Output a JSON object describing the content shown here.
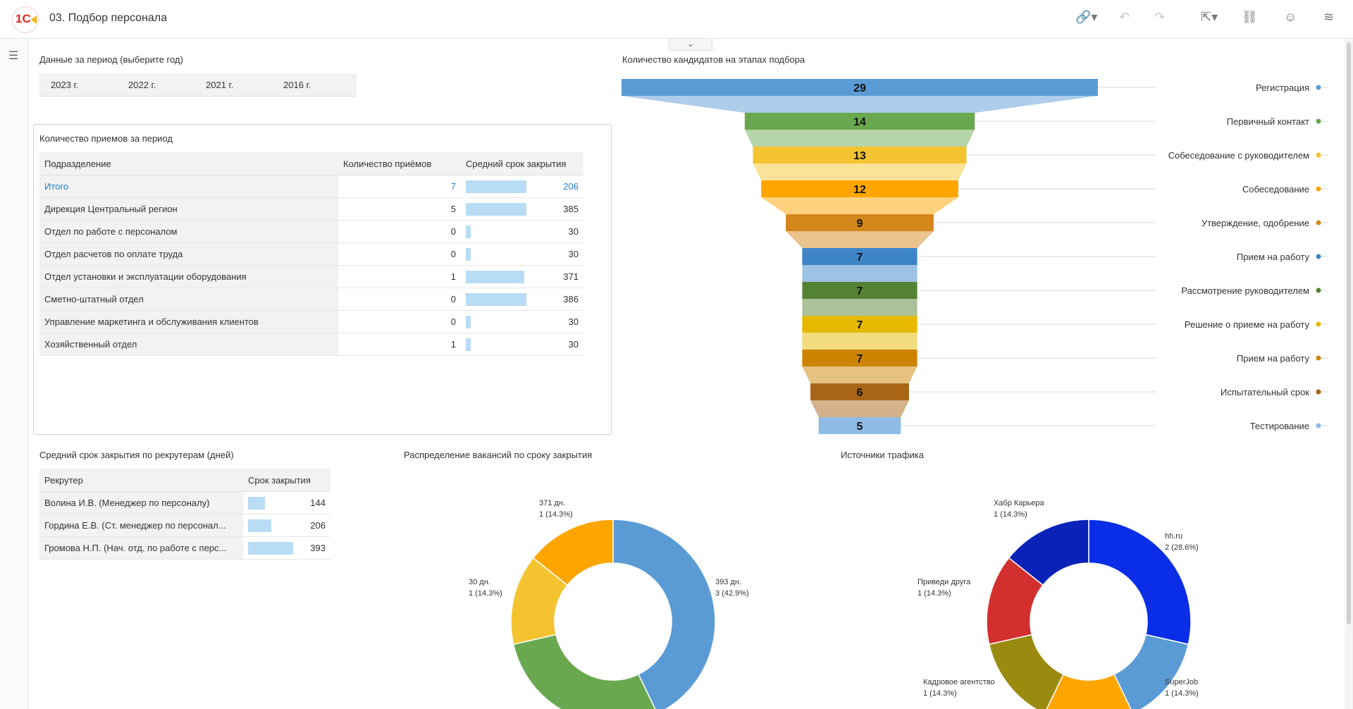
{
  "app": {
    "title": "03. Подбор персонала",
    "logo_text": "1С"
  },
  "period": {
    "label": "Данные за период (выберите год)",
    "years": [
      "2023 г.",
      "2022 г.",
      "2021 г.",
      "2016 г."
    ]
  },
  "hires": {
    "title": "Количество приемов за период",
    "headers": [
      "Подразделение",
      "Количество приёмов",
      "Средний срок закрытия"
    ],
    "rows": [
      {
        "dept": "Итого",
        "count": "7",
        "avg": "206",
        "bar": 1.0
      },
      {
        "dept": "Дирекция Центральный регион",
        "count": "5",
        "avg": "385",
        "bar": 1.0
      },
      {
        "dept": "Отдел по работе с персоналом",
        "count": "0",
        "avg": "30",
        "bar": 0.08
      },
      {
        "dept": "Отдел расчетов по оплате труда",
        "count": "0",
        "avg": "30",
        "bar": 0.08
      },
      {
        "dept": "Отдел установки и эксплуатации оборудования",
        "count": "1",
        "avg": "371",
        "bar": 0.96
      },
      {
        "dept": "Сметно-штатный отдел",
        "count": "0",
        "avg": "386",
        "bar": 1.0
      },
      {
        "dept": "Управление маркетинга и обслуживания клиентов",
        "count": "0",
        "avg": "30",
        "bar": 0.08
      },
      {
        "dept": "Хозяйственный отдел",
        "count": "1",
        "avg": "30",
        "bar": 0.08
      }
    ]
  },
  "recruiters": {
    "title": "Средний срок закрытия по рекрутерам (дней)",
    "headers": [
      "Рекрутер",
      "Срок закрытия"
    ],
    "rows": [
      {
        "name": "Волина И.В. (Менеджер по персоналу)",
        "value": "144",
        "bar": 0.37
      },
      {
        "name": "Гордина Е.В. (Ст. менеджер по персонал...",
        "value": "206",
        "bar": 0.52
      },
      {
        "name": "Громова Н.П. (Нач. отд. по работе с перс...",
        "value": "393",
        "bar": 1.0
      }
    ]
  },
  "funnel_title": "Количество кандидатов на этапах подбора",
  "closing_title": "Распределение вакансий по сроку закрытия",
  "traffic_title": "Источники трафика",
  "chart_data": [
    {
      "type": "funnel",
      "title": "Количество кандидатов на этапах подбора",
      "series": [
        {
          "label": "Регистрация",
          "value": 29,
          "color": "#5b9bd5"
        },
        {
          "label": "Первичный контакт",
          "value": 14,
          "color": "#6aa84f"
        },
        {
          "label": "Собеседование с руководителем",
          "value": 13,
          "color": "#f4c430"
        },
        {
          "label": "Собеседование",
          "value": 12,
          "color": "#ffa500"
        },
        {
          "label": "Утверждение, одобрение",
          "value": 9,
          "color": "#d4861a"
        },
        {
          "label": "Прием на работу",
          "value": 7,
          "color": "#3d85c6"
        },
        {
          "label": "Рассмотрение руководителем",
          "value": 7,
          "color": "#548235"
        },
        {
          "label": "Решение о приеме на работу",
          "value": 7,
          "color": "#e6b800"
        },
        {
          "label": "Прием на работу",
          "value": 7,
          "color": "#cc8400"
        },
        {
          "label": "Испытательный срок",
          "value": 6,
          "color": "#a86516"
        },
        {
          "label": "Тестирование",
          "value": 5,
          "color": "#8fbce6"
        }
      ]
    },
    {
      "type": "pie",
      "title": "Распределение вакансий по сроку закрытия",
      "slices": [
        {
          "label": "393 дн.",
          "value": 3,
          "pct": "3 (42.9%)",
          "color": "#5b9bd5"
        },
        {
          "label": "",
          "value": 2,
          "pct": "",
          "color": "#6aa84f"
        },
        {
          "label": "30 дн.",
          "value": 1,
          "pct": "1 (14.3%)",
          "color": "#f4c430"
        },
        {
          "label": "371 дн.",
          "value": 1,
          "pct": "1 (14.3%)",
          "color": "#ffa500"
        }
      ]
    },
    {
      "type": "pie",
      "title": "Источники трафика",
      "slices": [
        {
          "label": "hh.ru",
          "value": 2,
          "pct": "2 (28.6%)",
          "color": "#0a2ee8"
        },
        {
          "label": "SuperJob",
          "value": 1,
          "pct": "1 (14.3%)",
          "color": "#5b9bd5"
        },
        {
          "label": "",
          "value": 1,
          "pct": "",
          "color": "#ffa500"
        },
        {
          "label": "Кадровое агентство",
          "value": 1,
          "pct": "1 (14.3%)",
          "color": "#9a8a10"
        },
        {
          "label": "Приведи друга",
          "value": 1,
          "pct": "1 (14.3%)",
          "color": "#d32f2f"
        },
        {
          "label": "Хабр Карьера",
          "value": 1,
          "pct": "1 (14.3%)",
          "color": "#0a22b8"
        }
      ]
    }
  ]
}
